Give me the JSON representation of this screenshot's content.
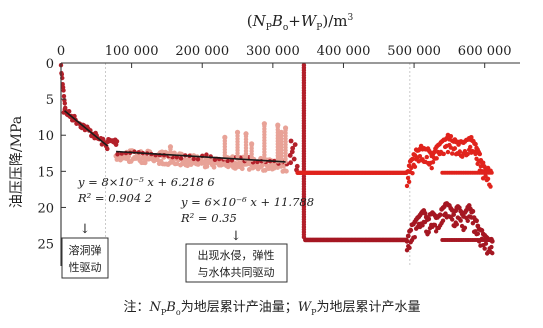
{
  "chart_data": {
    "type": "scatter",
    "x_axis": {
      "title_parts": [
        "(",
        "N",
        "P",
        "B",
        "o",
        "+",
        "W",
        "P",
        ")",
        "/m",
        "3"
      ],
      "ticks": [
        0,
        100000,
        200000,
        300000,
        400000,
        500000,
        600000
      ],
      "tick_labels": [
        "0",
        "100 000",
        "200 000",
        "300 000",
        "400 000",
        "500 000",
        "600 000"
      ],
      "range": [
        0,
        650000
      ],
      "position": "top"
    },
    "y_axis": {
      "title": "油压压降/MPa",
      "ticks": [
        0,
        5,
        10,
        15,
        20,
        25
      ],
      "tick_labels": [
        "0",
        "5",
        "10",
        "15",
        "20",
        "25"
      ],
      "range": [
        0,
        27
      ],
      "inverted": true
    },
    "reference_lines_x": [
      63000,
      494000
    ],
    "fits": [
      {
        "equation": "y = 8×10⁻⁵ x + 6.218 6",
        "r2": "R² = 0.904 2",
        "x_range": [
          5000,
          66000
        ],
        "slope": 8e-05,
        "intercept": 6.2186
      },
      {
        "equation": "y = 6×10⁻⁶ x + 11.788",
        "r2": "R² = 0.35",
        "x_range": [
          78000,
          318000
        ],
        "slope": 6e-06,
        "intercept": 11.788
      }
    ],
    "annotations": [
      {
        "text_lines": [
          "溶洞弹",
          "性驱动"
        ],
        "arrow": "↓"
      },
      {
        "text_lines": [
          "出现水侵，弹性",
          "与水体共同驱动"
        ],
        "arrow": "↓"
      }
    ],
    "series_colors": {
      "dark_red": "#b3202a",
      "light_pink": "#e8a297",
      "bright_red": "#e0231c",
      "dark_wine": "#a51722"
    },
    "note": {
      "parts": [
        "注：",
        "N",
        "P",
        "B",
        "o",
        "为地层累计产油量；",
        "W",
        "P",
        "为地层累计产水量"
      ]
    }
  }
}
